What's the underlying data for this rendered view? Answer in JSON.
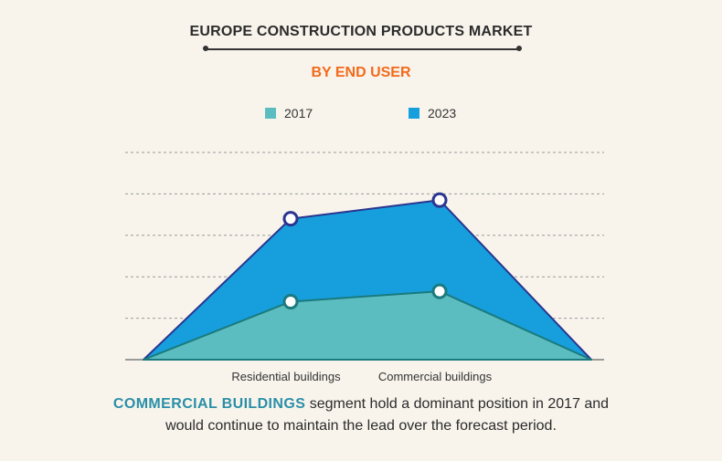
{
  "title": "EUROPE CONSTRUCTION PRODUCTS MARKET",
  "subtitle": "BY END USER",
  "colors": {
    "accent": "#f26a1b",
    "series_2017": "#5cbdc1",
    "series_2023": "#169fdc",
    "line_2023": "#2a3590",
    "line_2017": "#1a7a7d",
    "highlight": "#2a8fa7"
  },
  "chart_data": {
    "type": "area",
    "categories": [
      "",
      "Residential buildings",
      "Commercial buildings",
      ""
    ],
    "series": [
      {
        "name": "2017",
        "values": [
          0,
          1.4,
          1.65,
          0
        ]
      },
      {
        "name": "2023",
        "values": [
          0,
          3.4,
          3.85,
          0
        ]
      }
    ],
    "ylim": [
      0,
      5
    ],
    "grid": true,
    "legend": "top-center",
    "xlabel": "",
    "ylabel": ""
  },
  "footer": {
    "highlight": "COMMERCIAL BUILDINGS",
    "line1_rest": " segment hold a dominant position in 2017 and",
    "line2": "would continue to maintain the lead over the forecast period."
  }
}
